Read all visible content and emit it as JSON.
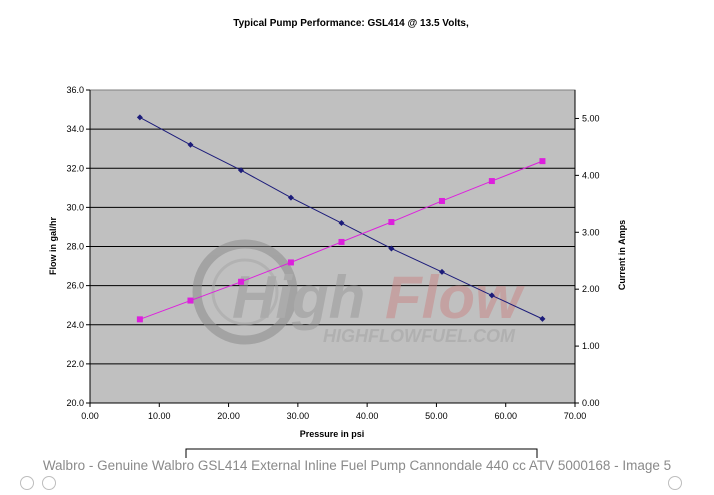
{
  "chart_data": {
    "type": "line",
    "title": "Typical Pump Performance:  GSL414 @ 13.5 Volts,",
    "xlabel": "Pressure in psi",
    "ylabel": "Flow in gal/hr",
    "y2label": "Current in Amps",
    "xlim": [
      0,
      70
    ],
    "ylim": [
      20,
      36
    ],
    "y2lim": [
      0,
      5.5
    ],
    "x_ticks": [
      "0.00",
      "10.00",
      "20.00",
      "30.00",
      "40.00",
      "50.00",
      "60.00",
      "70.00"
    ],
    "y_ticks": [
      "20.0",
      "22.0",
      "24.0",
      "26.0",
      "28.0",
      "30.0",
      "32.0",
      "34.0",
      "36.0"
    ],
    "y2_ticks": [
      "0.00",
      "1.00",
      "2.00",
      "3.00",
      "4.00",
      "5.00"
    ],
    "grid": "horizontal",
    "series": [
      {
        "axis": "left",
        "marker": "diamond",
        "color": "#1c1c7a",
        "x": [
          7.2,
          14.5,
          21.8,
          29.0,
          36.3,
          43.5,
          50.8,
          58.0,
          65.3
        ],
        "y": [
          34.6,
          33.2,
          31.9,
          30.5,
          29.2,
          27.9,
          26.7,
          25.5,
          24.3
        ]
      },
      {
        "axis": "right",
        "marker": "square",
        "color": "#dd1fdd",
        "x": [
          7.2,
          14.5,
          21.8,
          29.0,
          36.3,
          43.5,
          50.8,
          58.0,
          65.3
        ],
        "y": [
          1.47,
          1.8,
          2.13,
          2.47,
          2.83,
          3.18,
          3.55,
          3.9,
          4.25
        ]
      }
    ]
  },
  "watermark": {
    "brand_high": "High",
    "brand_flow": "Flow",
    "site": "HIGHFLOWFUEL.COM"
  },
  "caption": "Walbro - Genuine Walbro GSL414 External Inline Fuel Pump Cannondale 440 cc ATV 5000168 - Image 5"
}
